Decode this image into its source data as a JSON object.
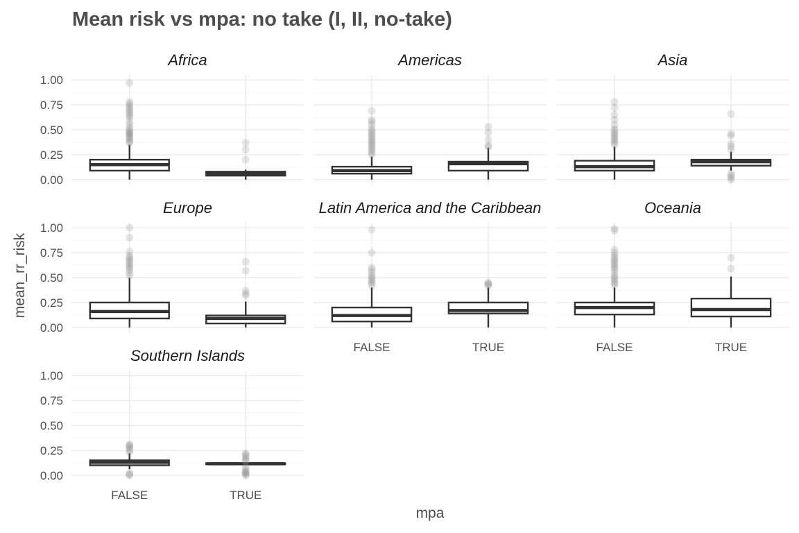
{
  "chart_data": {
    "type": "boxplot",
    "title": "Mean risk vs mpa: no take (I, II, no-take)",
    "xlabel": "mpa",
    "ylabel": "mean_rr_risk",
    "categories": [
      "FALSE",
      "TRUE"
    ],
    "ylim": [
      -0.05,
      1.05
    ],
    "yticks": [
      0,
      0.25,
      0.5,
      0.75,
      1.0
    ],
    "ytick_labels": [
      "0.00",
      "0.25",
      "0.50",
      "0.75",
      "1.00"
    ],
    "facets": [
      {
        "name": "Africa",
        "boxes": [
          {
            "x": "FALSE",
            "whisker_low": 0.0,
            "q1": 0.09,
            "median": 0.15,
            "q3": 0.2,
            "whisker_high": 0.35,
            "outliers": [
              0.37,
              0.38,
              0.4,
              0.42,
              0.43,
              0.45,
              0.46,
              0.47,
              0.48,
              0.5,
              0.52,
              0.55,
              0.58,
              0.62,
              0.64,
              0.66,
              0.68,
              0.7,
              0.72,
              0.74,
              0.76,
              0.78,
              0.97
            ]
          },
          {
            "x": "TRUE",
            "whisker_low": 0.0,
            "q1": 0.04,
            "median": 0.06,
            "q3": 0.08,
            "whisker_high": 0.1,
            "outliers": [
              0.2,
              0.3,
              0.37
            ]
          }
        ]
      },
      {
        "name": "Americas",
        "boxes": [
          {
            "x": "FALSE",
            "whisker_low": 0.0,
            "q1": 0.06,
            "median": 0.09,
            "q3": 0.13,
            "whisker_high": 0.23,
            "outliers": [
              0.25,
              0.27,
              0.29,
              0.31,
              0.33,
              0.35,
              0.37,
              0.39,
              0.41,
              0.43,
              0.45,
              0.47,
              0.49,
              0.51,
              0.55,
              0.58,
              0.6,
              0.69
            ]
          },
          {
            "x": "TRUE",
            "whisker_low": 0.0,
            "q1": 0.09,
            "median": 0.16,
            "q3": 0.18,
            "whisker_high": 0.32,
            "outliers": [
              0.33,
              0.34,
              0.4,
              0.47,
              0.53
            ]
          }
        ]
      },
      {
        "name": "Asia",
        "boxes": [
          {
            "x": "FALSE",
            "whisker_low": 0.0,
            "q1": 0.09,
            "median": 0.13,
            "q3": 0.19,
            "whisker_high": 0.33,
            "outliers": [
              0.35,
              0.37,
              0.39,
              0.41,
              0.43,
              0.45,
              0.47,
              0.49,
              0.51,
              0.55,
              0.6,
              0.65,
              0.72,
              0.78
            ]
          },
          {
            "x": "TRUE",
            "whisker_low": 0.09,
            "q1": 0.14,
            "median": 0.18,
            "q3": 0.2,
            "whisker_high": 0.28,
            "outliers": [
              0.0,
              0.02,
              0.04,
              0.06,
              0.3,
              0.33,
              0.36,
              0.44,
              0.46,
              0.66
            ]
          }
        ]
      },
      {
        "name": "Europe",
        "boxes": [
          {
            "x": "FALSE",
            "whisker_low": 0.0,
            "q1": 0.09,
            "median": 0.16,
            "q3": 0.25,
            "whisker_high": 0.5,
            "outliers": [
              0.52,
              0.55,
              0.58,
              0.6,
              0.62,
              0.64,
              0.66,
              0.68,
              0.7,
              0.72,
              0.76,
              0.9,
              1.0
            ]
          },
          {
            "x": "TRUE",
            "whisker_low": 0.0,
            "q1": 0.04,
            "median": 0.09,
            "q3": 0.12,
            "whisker_high": 0.26,
            "outliers": [
              0.32,
              0.34,
              0.37,
              0.57,
              0.66
            ]
          }
        ]
      },
      {
        "name": "Latin America and the Caribbean",
        "boxes": [
          {
            "x": "FALSE",
            "whisker_low": 0.0,
            "q1": 0.06,
            "median": 0.12,
            "q3": 0.2,
            "whisker_high": 0.4,
            "outliers": [
              0.42,
              0.44,
              0.46,
              0.48,
              0.5,
              0.52,
              0.55,
              0.58,
              0.6,
              0.75,
              0.98
            ]
          },
          {
            "x": "TRUE",
            "whisker_low": 0.0,
            "q1": 0.14,
            "median": 0.17,
            "q3": 0.25,
            "whisker_high": 0.4,
            "outliers": [
              0.42,
              0.43,
              0.44,
              0.45
            ]
          }
        ]
      },
      {
        "name": "Oceania",
        "boxes": [
          {
            "x": "FALSE",
            "whisker_low": 0.0,
            "q1": 0.13,
            "median": 0.2,
            "q3": 0.25,
            "whisker_high": 0.4,
            "outliers": [
              0.42,
              0.44,
              0.46,
              0.48,
              0.5,
              0.52,
              0.55,
              0.58,
              0.6,
              0.62,
              0.64,
              0.66,
              0.68,
              0.7,
              0.72,
              0.75,
              0.78,
              0.97,
              0.99
            ]
          },
          {
            "x": "TRUE",
            "whisker_low": 0.0,
            "q1": 0.11,
            "median": 0.18,
            "q3": 0.29,
            "whisker_high": 0.51,
            "outliers": [
              0.59,
              0.7
            ]
          }
        ]
      },
      {
        "name": "Southern Islands",
        "boxes": [
          {
            "x": "FALSE",
            "whisker_low": 0.06,
            "q1": 0.1,
            "median": 0.13,
            "q3": 0.15,
            "whisker_high": 0.22,
            "outliers": [
              0.0,
              0.01,
              0.02,
              0.23,
              0.25,
              0.27,
              0.29,
              0.3,
              0.31
            ]
          },
          {
            "x": "TRUE",
            "whisker_low": 0.1,
            "q1": 0.11,
            "median": 0.115,
            "q3": 0.12,
            "whisker_high": 0.13,
            "outliers": [
              0.0,
              0.01,
              0.02,
              0.03,
              0.04,
              0.06,
              0.08,
              0.14,
              0.15,
              0.17,
              0.19,
              0.21,
              0.22
            ]
          }
        ]
      }
    ],
    "grid": true,
    "legend": "none",
    "colors": {
      "box_fill": "#ffffff",
      "box_stroke": "#333333",
      "outlier": "#888888",
      "grid": "#e6e6e6"
    }
  }
}
